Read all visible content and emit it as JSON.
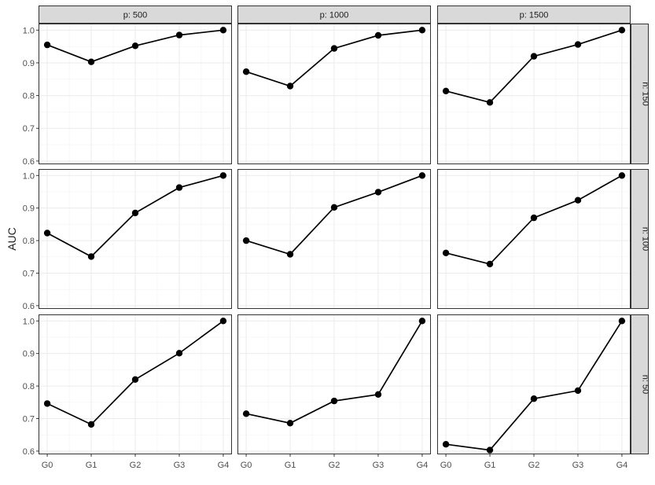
{
  "chart_data": {
    "type": "line",
    "ylabel": "AUC",
    "xlabel": "",
    "categories": [
      "G0",
      "G1",
      "G2",
      "G3",
      "G4"
    ],
    "yticks": [
      "0.6",
      "0.7",
      "0.8",
      "0.9",
      "1.0"
    ],
    "col_facets": [
      "p: 500",
      "p: 1000",
      "p: 1500"
    ],
    "row_facets": [
      "n: 150",
      "n: 100",
      "n: 50"
    ],
    "row_ylims": [
      [
        0.59,
        1.02
      ],
      [
        0.59,
        1.02
      ],
      [
        0.59,
        1.02
      ]
    ],
    "grid": true,
    "colors": {
      "line": "#000000",
      "strip_fill": "#d9d9d9",
      "panel_border": "#333333",
      "grid": "#ebebeb"
    },
    "panels": [
      {
        "row": 0,
        "col": 0,
        "values": [
          0.955,
          0.903,
          0.952,
          0.985,
          1.0
        ]
      },
      {
        "row": 0,
        "col": 1,
        "values": [
          0.873,
          0.829,
          0.944,
          0.984,
          1.0
        ]
      },
      {
        "row": 0,
        "col": 2,
        "values": [
          0.814,
          0.779,
          0.92,
          0.956,
          1.0
        ]
      },
      {
        "row": 1,
        "col": 0,
        "values": [
          0.823,
          0.751,
          0.885,
          0.963,
          1.0
        ]
      },
      {
        "row": 1,
        "col": 1,
        "values": [
          0.8,
          0.758,
          0.902,
          0.949,
          1.0
        ]
      },
      {
        "row": 1,
        "col": 2,
        "values": [
          0.762,
          0.728,
          0.87,
          0.924,
          1.0
        ]
      },
      {
        "row": 2,
        "col": 0,
        "values": [
          0.746,
          0.682,
          0.82,
          0.901,
          1.0
        ]
      },
      {
        "row": 2,
        "col": 1,
        "values": [
          0.715,
          0.686,
          0.754,
          0.774,
          1.0
        ]
      },
      {
        "row": 2,
        "col": 2,
        "values": [
          0.621,
          0.603,
          0.761,
          0.786,
          1.0
        ]
      }
    ]
  }
}
